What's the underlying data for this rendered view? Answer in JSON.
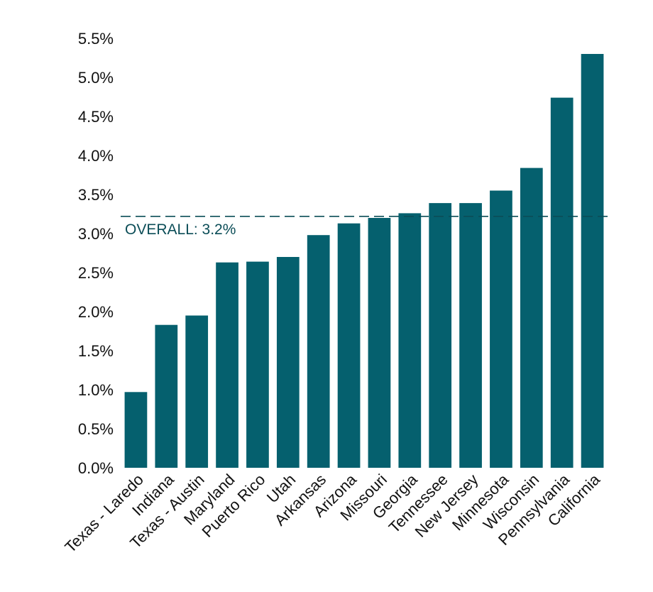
{
  "chart_data": {
    "type": "bar",
    "title": "",
    "xlabel": "",
    "ylabel": "",
    "ylim": [
      0,
      0.055
    ],
    "y_ticks": [
      0,
      0.005,
      0.01,
      0.015,
      0.02,
      0.025,
      0.03,
      0.035,
      0.04,
      0.045,
      0.05,
      0.055
    ],
    "y_tick_labels": [
      "0.0%",
      "0.5%",
      "1.0%",
      "1.5%",
      "2.0%",
      "2.5%",
      "3.0%",
      "3.5%",
      "4.0%",
      "4.5%",
      "5.0%",
      "5.5%"
    ],
    "categories": [
      "Texas - Laredo",
      "Indiana",
      "Texas - Austin",
      "Maryland",
      "Puerto Rico",
      "Utah",
      "Arkansas",
      "Arizona",
      "Missouri",
      "Georgia",
      "Tennessee",
      "New Jersey",
      "Minnesota",
      "Wisconsin",
      "Pennsylvania",
      "California"
    ],
    "values": [
      0.0097,
      0.0183,
      0.0195,
      0.0263,
      0.0264,
      0.027,
      0.0298,
      0.0313,
      0.032,
      0.0326,
      0.0339,
      0.0339,
      0.0355,
      0.0384,
      0.0474,
      0.053
    ],
    "reference_line": {
      "value": 0.0322,
      "label": "OVERALL: 3.2%",
      "style": "dashed"
    },
    "bar_color": "#05606e",
    "reference_color": "#0b4d57",
    "grid": false,
    "legend": "none"
  }
}
